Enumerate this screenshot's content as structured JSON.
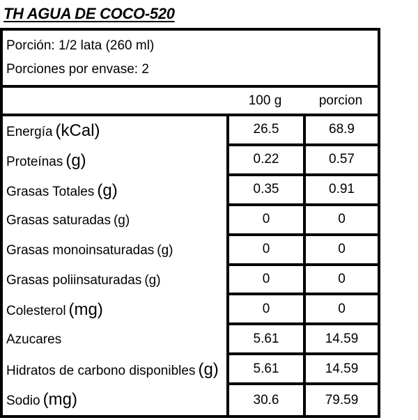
{
  "title": "TH AGUA DE COCO-520",
  "serving_info": {
    "serving_size": "Porción: 1/2 lata (260 ml)",
    "servings_per_container": "Porciones por envase: 2"
  },
  "table": {
    "columns": [
      "100 g",
      "porcion"
    ],
    "rows": [
      {
        "label": "Energía",
        "unit": "(kCal)",
        "unit_class": "unit-big",
        "per100g": "26.5",
        "porcion": "68.9"
      },
      {
        "label": "Proteínas",
        "unit": "(g)",
        "unit_class": "unit-big",
        "per100g": "0.22",
        "porcion": "0.57"
      },
      {
        "label": "Grasas Totales",
        "unit": "(g)",
        "unit_class": "unit-big",
        "per100g": "0.35",
        "porcion": "0.91"
      },
      {
        "label": "Grasas saturadas",
        "unit": "(g)",
        "unit_class": "unit-normal",
        "per100g": "0",
        "porcion": "0"
      },
      {
        "label": "Grasas monoinsaturadas",
        "unit": "(g)",
        "unit_class": "unit-normal",
        "per100g": "0",
        "porcion": "0"
      },
      {
        "label": "Grasas poliinsaturadas",
        "unit": "(g)",
        "unit_class": "unit-normal",
        "per100g": "0",
        "porcion": "0"
      },
      {
        "label": "Colesterol",
        "unit": "(mg)",
        "unit_class": "unit-big",
        "per100g": "0",
        "porcion": "0"
      },
      {
        "label": "Azucares",
        "unit": "",
        "unit_class": "unit-normal",
        "per100g": "5.61",
        "porcion": "14.59"
      },
      {
        "label": "Hidratos de carbono disponibles",
        "unit": "(g)",
        "unit_class": "unit-big",
        "per100g": "5.61",
        "porcion": "14.59"
      },
      {
        "label": "Sodio",
        "unit": "(mg)",
        "unit_class": "unit-big",
        "per100g": "30.6",
        "porcion": "79.59"
      }
    ]
  },
  "colors": {
    "text": "#000000",
    "border": "#000000",
    "background": "#ffffff"
  }
}
